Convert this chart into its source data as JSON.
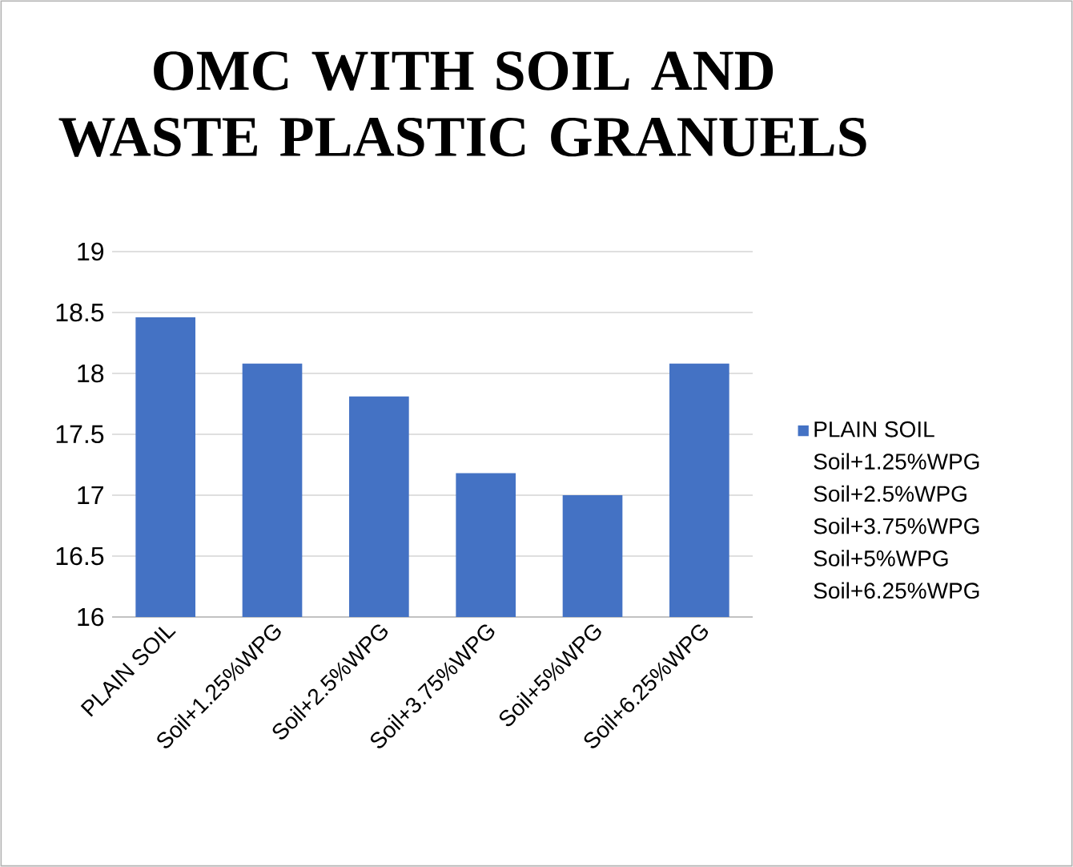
{
  "chart_data": {
    "type": "bar",
    "title": "OMC WITH SOIL AND WASTE PLASTIC GRANUELS",
    "categories": [
      "PLAIN SOIL",
      "Soil+1.25%WPG",
      "Soil+2.5%WPG",
      "Soil+3.75%WPG",
      "Soil+5%WPG",
      "Soil+6.25%WPG"
    ],
    "series": [
      {
        "name": "PLAIN SOIL",
        "color": "#4472c4",
        "values": [
          18.46,
          18.08,
          17.81,
          17.18,
          17.0,
          18.08
        ]
      }
    ],
    "annotations": [
      "Soil+1.25%WPG",
      "Soil+2.5%WPG",
      "Soil+3.75%WPG",
      "Soil+5%WPG",
      "Soil+6.25%WPG"
    ],
    "ylim": [
      16,
      19
    ],
    "yticks": [
      16,
      16.5,
      17,
      17.5,
      18,
      18.5,
      19
    ],
    "grid": "y",
    "legend": "right"
  }
}
